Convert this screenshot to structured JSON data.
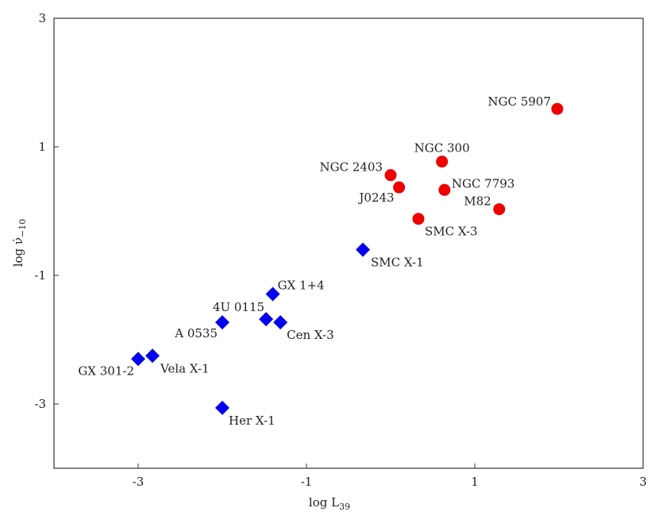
{
  "chart_data": {
    "type": "scatter",
    "title": "",
    "xlabel": "log L",
    "xlabel_sub": "39",
    "ylabel": "log ν̇",
    "ylabel_sub": "−10",
    "xlim": [
      -4,
      3
    ],
    "ylim": [
      -4,
      3
    ],
    "xticks": [
      -3,
      -1,
      1,
      3
    ],
    "yticks": [
      -3,
      -1,
      1,
      3
    ],
    "x_tick_labels": [
      "-3",
      "-1",
      "1",
      "3"
    ],
    "y_tick_labels": [
      "-3",
      "-1",
      "1",
      "3"
    ],
    "grid": false,
    "series": [
      {
        "marker": "diamond",
        "color": "#0000ee",
        "points": [
          {
            "label": "GX 301-2",
            "x": -3.0,
            "y": -2.3
          },
          {
            "label": "Vela X-1",
            "x": -2.83,
            "y": -2.25
          },
          {
            "label": "Her X-1",
            "x": -2.0,
            "y": -3.06
          },
          {
            "label": "A 0535",
            "x": -2.0,
            "y": -1.73
          },
          {
            "label": "4U 0115",
            "x": -1.48,
            "y": -1.68
          },
          {
            "label": "Cen X-3",
            "x": -1.31,
            "y": -1.73
          },
          {
            "label": "GX 1+4",
            "x": -1.4,
            "y": -1.29
          },
          {
            "label": "SMC X-1",
            "x": -0.33,
            "y": -0.6
          }
        ]
      },
      {
        "marker": "circle",
        "color": "#ee0000",
        "points": [
          {
            "label": "NGC 2403",
            "x": 0.0,
            "y": 0.56
          },
          {
            "label": "J0243",
            "x": 0.1,
            "y": 0.37
          },
          {
            "label": "SMC X-3",
            "x": 0.33,
            "y": -0.12
          },
          {
            "label": "NGC 300",
            "x": 0.61,
            "y": 0.77
          },
          {
            "label": "NGC 7793",
            "x": 0.64,
            "y": 0.33
          },
          {
            "label": "M82",
            "x": 1.29,
            "y": 0.03
          },
          {
            "label": "NGC 5907",
            "x": 1.98,
            "y": 1.59
          }
        ]
      }
    ]
  }
}
